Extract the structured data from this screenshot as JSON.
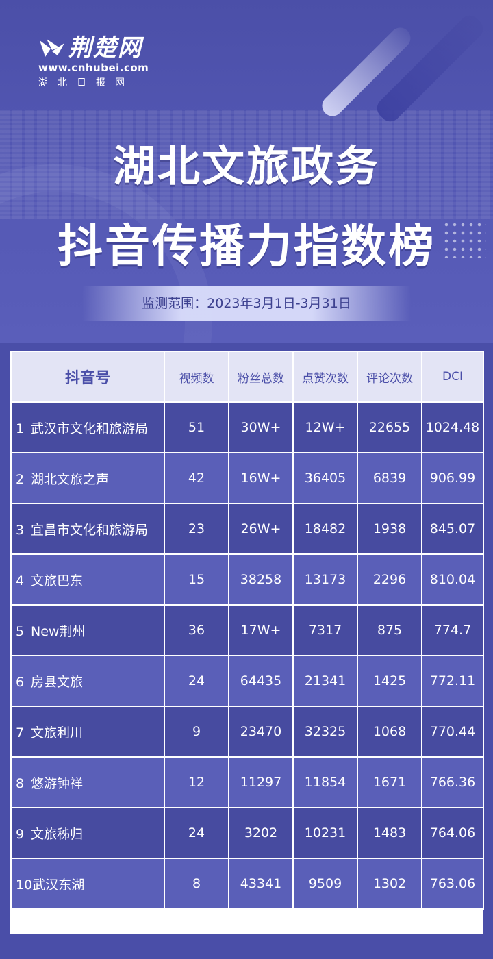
{
  "brand": {
    "name": "荆楚网",
    "url": "www.cnhubei.com",
    "subtitle": "湖北日报网"
  },
  "title": {
    "line1": "湖北文旅政务",
    "line2": "抖音传播力指数榜"
  },
  "monitor_range": "监测范围：2023年3月1日-3月31日",
  "table": {
    "headers": [
      "抖音号",
      "视频数",
      "粉丝总数",
      "点赞次数",
      "评论次数",
      "DCI"
    ],
    "rows": [
      {
        "rank": "1",
        "name": "武汉市文化和旅游局",
        "videos": "51",
        "fans": "30W+",
        "likes": "12W+",
        "comments": "22655",
        "dci": "1024.48"
      },
      {
        "rank": "2",
        "name": "湖北文旅之声",
        "videos": "42",
        "fans": "16W+",
        "likes": "36405",
        "comments": "6839",
        "dci": "906.99"
      },
      {
        "rank": "3",
        "name": "宜昌市文化和旅游局",
        "videos": "23",
        "fans": "26W+",
        "likes": "18482",
        "comments": "1938",
        "dci": "845.07"
      },
      {
        "rank": "4",
        "name": "文旅巴东",
        "videos": "15",
        "fans": "38258",
        "likes": "13173",
        "comments": "2296",
        "dci": "810.04"
      },
      {
        "rank": "5",
        "name": "New荆州",
        "videos": "36",
        "fans": "17W+",
        "likes": "7317",
        "comments": "875",
        "dci": "774.7"
      },
      {
        "rank": "6",
        "name": "房县文旅",
        "videos": "24",
        "fans": "64435",
        "likes": "21341",
        "comments": "1425",
        "dci": "772.11"
      },
      {
        "rank": "7",
        "name": "文旅利川",
        "videos": "9",
        "fans": "23470",
        "likes": "32325",
        "comments": "1068",
        "dci": "770.44"
      },
      {
        "rank": "8",
        "name": "悠游钟祥",
        "videos": "12",
        "fans": "11297",
        "likes": "11854",
        "comments": "1671",
        "dci": "766.36"
      },
      {
        "rank": "9",
        "name": "文旅秭归",
        "videos": "24",
        "fans": "3202",
        "likes": "10231",
        "comments": "1483",
        "dci": "764.06"
      },
      {
        "rank": "10",
        "name": "武汉东湖",
        "videos": "8",
        "fans": "43341",
        "likes": "9509",
        "comments": "1302",
        "dci": "763.06"
      }
    ]
  },
  "colors": {
    "background": "#4a4ea8",
    "row_dark": "#474ba0",
    "row_light": "#5a5fb8",
    "header_bg": "#e3e4f5",
    "header_text": "#4a4ea8"
  }
}
